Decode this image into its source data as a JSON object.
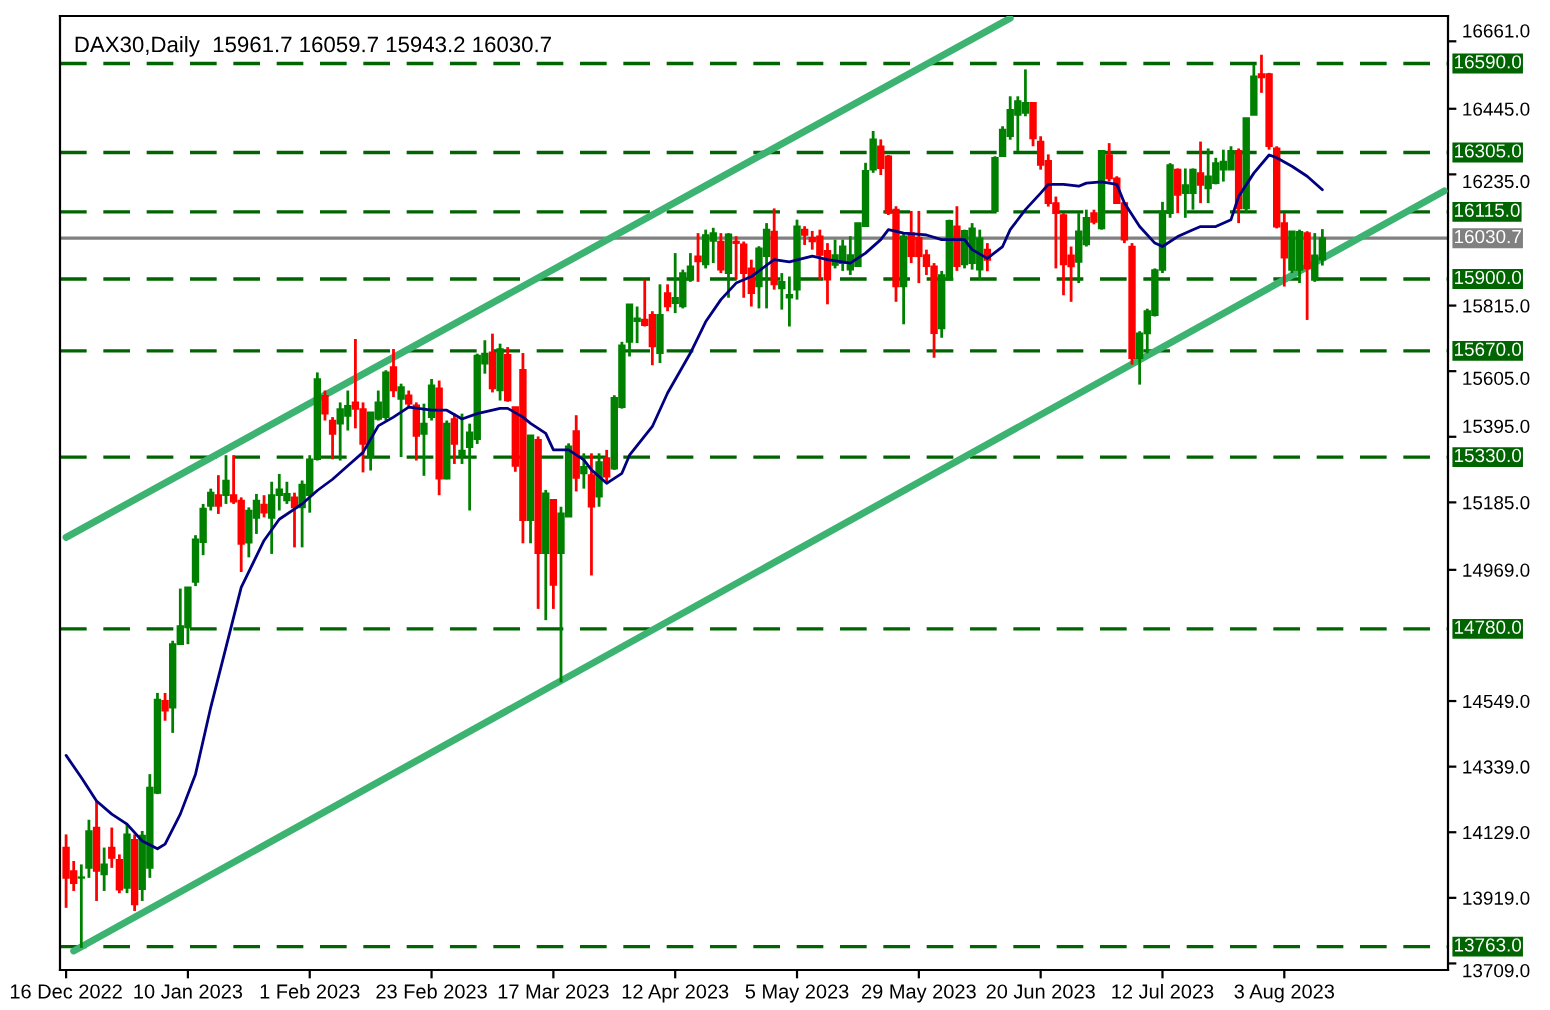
{
  "chart_data": {
    "type": "candlestick",
    "title": "DAX30,Daily  15961.7 16059.7 15943.2 16030.7",
    "categories": [
      "16 Dec 2022",
      null,
      null,
      null,
      null,
      null,
      null,
      null,
      null,
      null,
      null,
      null,
      null,
      null,
      null,
      null,
      "10 Jan 2023",
      null,
      null,
      null,
      null,
      null,
      null,
      null,
      null,
      null,
      null,
      null,
      null,
      null,
      null,
      null,
      "1 Feb 2023",
      null,
      null,
      null,
      null,
      null,
      null,
      null,
      null,
      null,
      null,
      null,
      null,
      null,
      null,
      null,
      "23 Feb 2023",
      null,
      null,
      null,
      null,
      null,
      null,
      null,
      null,
      null,
      null,
      null,
      null,
      null,
      null,
      null,
      "17 Mar 2023",
      null,
      null,
      null,
      null,
      null,
      null,
      null,
      null,
      null,
      null,
      null,
      null,
      null,
      null,
      null,
      "12 Apr 2023",
      null,
      null,
      null,
      null,
      null,
      null,
      null,
      null,
      null,
      null,
      null,
      null,
      null,
      null,
      null,
      "5 May 2023",
      null,
      null,
      null,
      null,
      null,
      null,
      null,
      null,
      null,
      null,
      null,
      null,
      null,
      null,
      null,
      "29 May 2023",
      null,
      null,
      null,
      null,
      null,
      null,
      null,
      null,
      null,
      null,
      null,
      null,
      null,
      null,
      null,
      "20 Jun 2023",
      null,
      null,
      null,
      null,
      null,
      null,
      null,
      null,
      null,
      null,
      null,
      null,
      null,
      null,
      null,
      "12 Jul 2023",
      null,
      null,
      null,
      null,
      null,
      null,
      null,
      null,
      null,
      null,
      null,
      null,
      null,
      null,
      null,
      "3 Aug 2023",
      null,
      null,
      null,
      null,
      null,
      null,
      null,
      null,
      null,
      null,
      null,
      null,
      null,
      null,
      null,
      null,
      null,
      null,
      null,
      null,
      null
    ],
    "ohlc": [
      [
        14080,
        14122,
        13887,
        13983
      ],
      [
        14005,
        14037,
        13941,
        13966
      ],
      [
        13983,
        14026,
        13759,
        13985
      ],
      [
        14015,
        14169,
        13983,
        14133
      ],
      [
        14144,
        14229,
        13909,
        14005
      ],
      [
        13994,
        14080,
        13941,
        14026
      ],
      [
        14080,
        14144,
        14015,
        14047
      ],
      [
        14041,
        14058,
        13934,
        13945
      ],
      [
        13951,
        14154,
        13934,
        14122
      ],
      [
        14105,
        14122,
        13877,
        13898
      ],
      [
        13947,
        14133,
        13909,
        14118
      ],
      [
        14015,
        14315,
        13983,
        14272
      ],
      [
        14255,
        14575,
        14251,
        14554
      ],
      [
        14550,
        14575,
        14486,
        14518
      ],
      [
        14528,
        14742,
        14447,
        14731
      ],
      [
        14731,
        14909,
        14731,
        14789
      ],
      [
        14785,
        14913,
        14731,
        14913
      ],
      [
        14930,
        15080,
        14917,
        15067
      ],
      [
        15058,
        15180,
        15016,
        15165
      ],
      [
        15174,
        15229,
        15159,
        15216
      ],
      [
        15208,
        15272,
        15148,
        15174
      ],
      [
        15208,
        15336,
        15180,
        15255
      ],
      [
        15208,
        15336,
        15180,
        15187
      ],
      [
        15191,
        15201,
        14962,
        15052
      ],
      [
        15056,
        15169,
        15009,
        15159
      ],
      [
        15135,
        15212,
        15084,
        15191
      ],
      [
        15178,
        15208,
        15137,
        15152
      ],
      [
        15135,
        15251,
        15020,
        15208
      ],
      [
        15208,
        15276,
        15159,
        15227
      ],
      [
        15191,
        15251,
        15180,
        15212
      ],
      [
        15201,
        15216,
        15041,
        15169
      ],
      [
        15169,
        15255,
        15041,
        15242
      ],
      [
        15208,
        15336,
        15152,
        15323
      ],
      [
        15323,
        15601,
        15319,
        15580
      ],
      [
        15526,
        15543,
        15447,
        15469
      ],
      [
        15447,
        15458,
        15323,
        15404
      ],
      [
        15437,
        15505,
        15319,
        15484
      ],
      [
        15462,
        15543,
        15415,
        15494
      ],
      [
        15505,
        15708,
        15422,
        15484
      ],
      [
        15484,
        15505,
        15281,
        15372
      ],
      [
        15330,
        15473,
        15287,
        15473
      ],
      [
        15452,
        15543,
        15447,
        15505
      ],
      [
        15458,
        15608,
        15447,
        15601
      ],
      [
        15618,
        15676,
        15522,
        15543
      ],
      [
        15516,
        15565,
        15330,
        15554
      ],
      [
        15528,
        15543,
        15490,
        15501
      ],
      [
        15496,
        15505,
        15319,
        15398
      ],
      [
        15404,
        15501,
        15270,
        15437
      ],
      [
        15458,
        15580,
        15447,
        15560
      ],
      [
        15550,
        15575,
        15208,
        15261
      ],
      [
        15261,
        15447,
        15259,
        15437
      ],
      [
        15452,
        15469,
        15308,
        15372
      ],
      [
        15336,
        15469,
        15308,
        15351
      ],
      [
        15362,
        15437,
        15159,
        15409
      ],
      [
        15387,
        15661,
        15372,
        15655
      ],
      [
        15629,
        15704,
        15597,
        15661
      ],
      [
        15665,
        15725,
        15537,
        15550
      ],
      [
        15543,
        15693,
        15511,
        15676
      ],
      [
        15657,
        15682,
        15507,
        15511
      ],
      [
        15490,
        15490,
        15283,
        15302
      ],
      [
        15609,
        15663,
        15054,
        15128
      ],
      [
        15128,
        15400,
        15054,
        15400
      ],
      [
        15385,
        15396,
        14844,
        15022
      ],
      [
        15022,
        15225,
        14808,
        15214
      ],
      [
        15193,
        15193,
        14844,
        14921
      ],
      [
        15022,
        15171,
        14609,
        15150
      ],
      [
        15139,
        15374,
        15139,
        15364
      ],
      [
        15413,
        15464,
        15220,
        15263
      ],
      [
        15278,
        15342,
        15229,
        15299
      ],
      [
        15272,
        15342,
        14951,
        15171
      ],
      [
        15203,
        15342,
        15171,
        15314
      ],
      [
        15327,
        15353,
        15246,
        15267
      ],
      [
        15293,
        15528,
        15289,
        15520
      ],
      [
        15490,
        15699,
        15485,
        15688
      ],
      [
        15699,
        15819,
        15652,
        15819
      ],
      [
        15765,
        15812,
        15695,
        15774
      ],
      [
        15770,
        15898,
        15748,
        15752
      ],
      [
        15785,
        15797,
        15624,
        15684
      ],
      [
        15663,
        15883,
        15631,
        15785
      ],
      [
        15855,
        15883,
        15797,
        15812
      ],
      [
        15823,
        15983,
        15791,
        15840
      ],
      [
        15812,
        15930,
        15806,
        15919
      ],
      [
        15898,
        15983,
        15891,
        15941
      ],
      [
        15973,
        16047,
        15891,
        15956
      ],
      [
        15947,
        16058,
        15934,
        16041
      ],
      [
        16022,
        16064,
        15951,
        16047
      ],
      [
        16020,
        16047,
        15919,
        15930
      ],
      [
        15919,
        16047,
        15840,
        16043
      ],
      [
        16020,
        16037,
        15898,
        16015
      ],
      [
        16011,
        16020,
        15840,
        15919
      ],
      [
        15934,
        15962,
        15812,
        15855
      ],
      [
        15876,
        16005,
        15806,
        15998
      ],
      [
        15973,
        16079,
        15806,
        16058
      ],
      [
        16052,
        16126,
        15866,
        15883
      ],
      [
        15870,
        15919,
        15802,
        15891
      ],
      [
        15840,
        15908,
        15748,
        15849
      ],
      [
        15866,
        16090,
        15834,
        16069
      ],
      [
        16058,
        16069,
        16009,
        16041
      ],
      [
        16032,
        16054,
        15994,
        16020
      ],
      [
        16037,
        16058,
        15898,
        15977
      ],
      [
        15990,
        16015,
        15819,
        15898
      ],
      [
        15945,
        16026,
        15934,
        15977
      ],
      [
        15951,
        16026,
        15926,
        16005
      ],
      [
        15930,
        16037,
        15913,
        15977
      ],
      [
        15941,
        16079,
        15941,
        16079
      ],
      [
        16069,
        16272,
        16069,
        16246
      ],
      [
        16250,
        16374,
        16240,
        16347
      ],
      [
        16325,
        16347,
        16233,
        16255
      ],
      [
        16293,
        16297,
        16105,
        16112
      ],
      [
        16122,
        16133,
        15827,
        15876
      ],
      [
        15876,
        16047,
        15755,
        16037
      ],
      [
        16047,
        16118,
        15951,
        15973
      ],
      [
        16032,
        16118,
        15887,
        15973
      ],
      [
        15977,
        15994,
        15913,
        15941
      ],
      [
        15941,
        15951,
        15648,
        15727
      ],
      [
        15742,
        15926,
        15712,
        15913
      ],
      [
        15898,
        16090,
        15898,
        16086
      ],
      [
        16069,
        16133,
        15926,
        15941
      ],
      [
        15947,
        16058,
        15934,
        16054
      ],
      [
        15951,
        16079,
        15930,
        16062
      ],
      [
        15930,
        16058,
        15898,
        16030
      ],
      [
        15994,
        16015,
        15925,
        15961
      ],
      [
        16117,
        16293,
        16117,
        16288
      ],
      [
        16293,
        16389,
        16293,
        16378
      ],
      [
        16357,
        16485,
        16346,
        16442
      ],
      [
        16425,
        16485,
        16310,
        16470
      ],
      [
        16432,
        16571,
        16421,
        16464
      ],
      [
        16464,
        16464,
        16325,
        16350
      ],
      [
        16340,
        16357,
        16250,
        16265
      ],
      [
        16278,
        16299,
        16132,
        16143
      ],
      [
        16143,
        16164,
        15934,
        16111
      ],
      [
        16105,
        16111,
        15848,
        15947
      ],
      [
        15976,
        16004,
        15827,
        15940
      ],
      [
        15955,
        16111,
        15887,
        16053
      ],
      [
        16011,
        16122,
        16004,
        16096
      ],
      [
        16111,
        16122,
        16075,
        16083
      ],
      [
        16062,
        16310,
        16058,
        16310
      ],
      [
        16297,
        16335,
        16212,
        16222
      ],
      [
        16222,
        16229,
        16143,
        16143
      ],
      [
        16143,
        16143,
        16015,
        16026
      ],
      [
        16004,
        16015,
        15626,
        15647
      ],
      [
        15647,
        15733,
        15562,
        15726
      ],
      [
        15726,
        15805,
        15662,
        15797
      ],
      [
        15784,
        15934,
        15780,
        15929
      ],
      [
        15929,
        16147,
        15919,
        16117
      ],
      [
        16111,
        16271,
        16096,
        16265
      ],
      [
        16250,
        16254,
        16111,
        16169
      ],
      [
        16175,
        16254,
        16096,
        16201
      ],
      [
        16175,
        16254,
        16122,
        16250
      ],
      [
        16239,
        16340,
        16143,
        16201
      ],
      [
        16190,
        16318,
        16143,
        16229
      ],
      [
        16207,
        16288,
        16203,
        16271
      ],
      [
        16250,
        16314,
        16212,
        16276
      ],
      [
        16250,
        16325,
        16250,
        16310
      ],
      [
        16310,
        16318,
        16079,
        16126
      ],
      [
        16126,
        16415,
        16111,
        16415
      ],
      [
        16425,
        16588,
        16425,
        16549
      ],
      [
        16556,
        16618,
        16496,
        16545
      ],
      [
        16556,
        16560,
        16314,
        16325
      ],
      [
        16318,
        16325,
        16062,
        16068
      ],
      [
        16079,
        16111,
        15876,
        15968
      ],
      [
        15929,
        16053,
        15919,
        16053
      ],
      [
        15929,
        16058,
        15887,
        16051
      ],
      [
        16047,
        16053,
        15769,
        15934
      ],
      [
        15897,
        16047,
        15891,
        15976
      ],
      [
        15961.7,
        16059.7,
        15943.2,
        16030.7
      ],
      null,
      null,
      null,
      null,
      null,
      null,
      null,
      null,
      null,
      null,
      null,
      null,
      null,
      null,
      null,
      null
    ],
    "colors": [
      "#ff0000",
      "#ff0000",
      "#008000",
      "#008000",
      "#ff0000",
      "#008000",
      "#ff0000",
      "#ff0000",
      "#008000",
      "#ff0000",
      "#008000",
      "#008000",
      "#008000",
      "#ff0000",
      "#008000",
      "#008000",
      "#008000",
      "#008000",
      "#008000",
      "#008000",
      "#ff0000",
      "#008000",
      "#ff0000",
      "#ff0000",
      "#008000",
      "#008000",
      "#ff0000",
      "#008000",
      "#008000",
      "#008000",
      "#ff0000",
      "#008000",
      "#008000",
      "#008000",
      "#ff0000",
      "#ff0000",
      "#008000",
      "#008000",
      "#ff0000",
      "#ff0000",
      "#008000",
      "#008000",
      "#008000",
      "#ff0000",
      "#008000",
      "#ff0000",
      "#ff0000",
      "#008000",
      "#008000",
      "#ff0000",
      "#008000",
      "#ff0000",
      "#008000",
      "#008000",
      "#008000",
      "#008000",
      "#ff0000",
      "#008000",
      "#ff0000",
      "#ff0000",
      "#ff0000",
      "#008000",
      "#ff0000",
      "#008000",
      "#ff0000",
      "#008000",
      "#008000",
      "#ff0000",
      "#008000",
      "#ff0000",
      "#008000",
      "#ff0000",
      "#008000",
      "#008000",
      "#008000",
      "#008000",
      "#ff0000",
      "#ff0000",
      "#008000",
      "#ff0000",
      "#008000",
      "#008000",
      "#008000",
      "#ff0000",
      "#008000",
      "#008000",
      "#ff0000",
      "#008000",
      "#ff0000",
      "#ff0000",
      "#ff0000",
      "#008000",
      "#008000",
      "#ff0000",
      "#008000",
      "#008000",
      "#008000",
      "#ff0000",
      "#ff0000",
      "#ff0000",
      "#ff0000",
      "#008000",
      "#008000",
      "#008000",
      "#008000",
      "#008000",
      "#008000",
      "#ff0000",
      "#ff0000",
      "#ff0000",
      "#008000",
      "#ff0000",
      "#ff0000",
      "#ff0000",
      "#ff0000",
      "#008000",
      "#008000",
      "#ff0000",
      "#008000",
      "#008000",
      "#008000",
      "#ff0000",
      "#008000",
      "#008000",
      "#008000",
      "#008000",
      "#008000",
      "#ff0000",
      "#ff0000",
      "#ff0000",
      "#ff0000",
      "#ff0000",
      "#ff0000",
      "#008000",
      "#008000",
      "#ff0000",
      "#008000",
      "#ff0000",
      "#ff0000",
      "#ff0000",
      "#ff0000",
      "#008000",
      "#008000",
      "#008000",
      "#008000",
      "#008000",
      "#ff0000",
      "#008000",
      "#008000",
      "#ff0000",
      "#008000",
      "#008000",
      "#008000",
      "#008000",
      "#ff0000",
      "#008000",
      "#008000",
      "#ff0000",
      "#ff0000",
      "#ff0000",
      "#ff0000",
      "#008000",
      "#008000",
      "#ff0000",
      "#008000",
      "#008000",
      null,
      null,
      null,
      null,
      null,
      null,
      null,
      null,
      null,
      null,
      null,
      null,
      null,
      null,
      null,
      null
    ],
    "series": [
      {
        "type": "line",
        "color": "#3cb371",
        "values": [
          15073,
          null,
          null,
          null,
          null,
          null,
          null,
          null,
          null,
          null,
          null,
          null,
          null,
          null,
          null,
          null,
          null,
          null,
          null,
          null,
          null,
          null,
          null,
          null,
          null,
          null,
          null,
          null,
          null,
          null,
          null,
          null,
          null,
          null,
          null,
          null,
          null,
          null,
          null,
          null,
          null,
          null,
          null,
          null,
          null,
          null,
          null,
          null,
          null,
          null,
          null,
          null,
          null,
          null,
          null,
          null,
          null,
          null,
          null,
          null,
          null,
          null,
          null,
          null,
          null,
          null,
          null,
          null,
          null,
          null,
          null,
          null,
          null,
          null,
          null,
          null,
          null,
          null,
          null,
          null,
          null,
          null,
          null,
          null,
          null,
          null,
          null,
          null,
          null,
          null,
          null,
          null,
          null,
          null,
          null,
          null,
          null,
          null,
          null,
          null,
          null,
          null,
          null,
          null,
          null,
          null,
          null,
          null,
          null,
          null,
          null,
          null,
          null,
          null,
          null,
          null,
          null,
          null,
          null,
          null,
          null,
          null,
          null,
          null,
          16735,
          null,
          null,
          null,
          null,
          null,
          null,
          null,
          null,
          null,
          null,
          null,
          null,
          null,
          null,
          null,
          null,
          null,
          null,
          null,
          null,
          null,
          null,
          null,
          null,
          null,
          null,
          null,
          null,
          null,
          null,
          null,
          null,
          null,
          null,
          null,
          null,
          null,
          null,
          null,
          null,
          null,
          null,
          null,
          null,
          null,
          null,
          null,
          null,
          null,
          null,
          null,
          null,
          null,
          null,
          null,
          null,
          null
        ]
      },
      {
        "type": "line",
        "color": "#3cb371",
        "values": [
          null,
          13749,
          null,
          null,
          null,
          null,
          null,
          null,
          null,
          null,
          null,
          null,
          null,
          null,
          null,
          null,
          null,
          null,
          null,
          null,
          null,
          null,
          null,
          null,
          null,
          null,
          null,
          null,
          null,
          null,
          null,
          null,
          null,
          null,
          null,
          null,
          null,
          null,
          null,
          null,
          null,
          null,
          null,
          null,
          null,
          null,
          null,
          null,
          null,
          null,
          null,
          null,
          null,
          null,
          null,
          null,
          null,
          null,
          null,
          null,
          null,
          null,
          null,
          null,
          null,
          null,
          null,
          null,
          null,
          null,
          null,
          null,
          null,
          null,
          null,
          null,
          null,
          null,
          null,
          null,
          null,
          null,
          null,
          null,
          null,
          null,
          null,
          null,
          null,
          null,
          null,
          null,
          null,
          null,
          null,
          null,
          null,
          null,
          null,
          null,
          null,
          null,
          null,
          null,
          null,
          null,
          null,
          null,
          null,
          null,
          null,
          null,
          null,
          null,
          null,
          null,
          null,
          null,
          null,
          null,
          null,
          null,
          null,
          null,
          null,
          null,
          null,
          null,
          null,
          null,
          null,
          null,
          null,
          null,
          null,
          null,
          null,
          null,
          null,
          null,
          null,
          null,
          null,
          null,
          null,
          null,
          null,
          null,
          null,
          null,
          null,
          null,
          null,
          null,
          null,
          null,
          null,
          null,
          null,
          null,
          null,
          null,
          null,
          null,
          null,
          null,
          null,
          null,
          null,
          null,
          null,
          null,
          null,
          null,
          null,
          null,
          null,
          null,
          null,
          null,
          null,
          16182
        ]
      },
      {
        "type": "line",
        "color": "#000080",
        "values": [
          14375,
          null,
          14304,
          null,
          14229,
          null,
          14187,
          null,
          14155,
          null,
          14101,
          null,
          14076,
          14091,
          null,
          14187,
          null,
          14315,
          null,
          14529,
          null,
          14721,
          null,
          14913,
          null,
          null,
          15063,
          null,
          15131,
          null,
          null,
          15180,
          null,
          15223,
          null,
          15259,
          null,
          15302,
          null,
          15345,
          null,
          15430,
          null,
          15458,
          null,
          15490,
          null,
          null,
          15480,
          null,
          15480,
          null,
          15452,
          null,
          15469,
          null,
          null,
          15486,
          15486,
          null,
          15458,
          15438,
          null,
          15406,
          15353,
          null,
          15353,
          null,
          15321,
          15289,
          null,
          15246,
          null,
          15278,
          15336,
          null,
          null,
          15428,
          null,
          15535,
          null,
          null,
          15663,
          null,
          15763,
          null,
          15834,
          null,
          15887,
          null,
          15908,
          null,
          null,
          15962,
          null,
          15955,
          null,
          null,
          15973,
          null,
          15962,
          null,
          null,
          15951,
          null,
          15983,
          null,
          16026,
          16058,
          null,
          16047,
          null,
          null,
          16041,
          null,
          16026,
          null,
          null,
          16026,
          15994,
          null,
          15966,
          null,
          16004,
          16058,
          null,
          16122,
          null,
          16175,
          16203,
          null,
          16203,
          null,
          16197,
          16207,
          null,
          16211,
          null,
          16203,
          16143,
          null,
          16068,
          null,
          16015,
          16004,
          null,
          16036,
          null,
          16058,
          16068,
          null,
          16068,
          null,
          16090,
          16164,
          null,
          16239,
          null,
          16297,
          16288,
          null,
          16261,
          null,
          16229,
          null,
          16186,
          null,
          null,
          null,
          null,
          null,
          null,
          null,
          null,
          null,
          null,
          null,
          null,
          null,
          null,
          null,
          null
        ]
      }
    ],
    "ref_lines": [
      {
        "axis": "y",
        "value": 16590,
        "label": "16590.0",
        "color": "#006400",
        "line_style": "dashed"
      },
      {
        "axis": "y",
        "value": 16305,
        "label": "16305.0",
        "color": "#006400",
        "line_style": "dashed"
      },
      {
        "axis": "y",
        "value": 16115,
        "label": "16115.0",
        "color": "#006400",
        "line_style": "dashed"
      },
      {
        "axis": "y",
        "value": 16030.7,
        "label": "16030.7",
        "color": "#808080",
        "line_style": "solid"
      },
      {
        "axis": "y",
        "value": 15900,
        "label": "15900.0",
        "color": "#006400",
        "line_style": "dashed"
      },
      {
        "axis": "y",
        "value": 15670,
        "label": "15670.0",
        "color": "#006400",
        "line_style": "dashed"
      },
      {
        "axis": "y",
        "value": 15330,
        "label": "15330.0",
        "color": "#006400",
        "line_style": "dashed"
      },
      {
        "axis": "y",
        "value": 14780,
        "label": "14780.0",
        "color": "#006400",
        "line_style": "dashed"
      },
      {
        "axis": "y",
        "value": 13763,
        "label": "13763.0",
        "color": "#006400",
        "line_style": "dashed"
      }
    ],
    "ylim": [
      13688,
      16742
    ],
    "yticks": [
      {
        "value": 16661,
        "label": "16661.0"
      },
      {
        "value": 16445,
        "label": "16445.0"
      },
      {
        "value": 16235,
        "label": "16235.0"
      },
      {
        "value": 15815,
        "label": "15815.0"
      },
      {
        "value": 15605,
        "label": "15605.0"
      },
      {
        "value": 15395,
        "label": "15395.0"
      },
      {
        "value": 15185,
        "label": "15185.0"
      },
      {
        "value": 14969,
        "label": "14969.0"
      },
      {
        "value": 14549,
        "label": "14549.0"
      },
      {
        "value": 14339,
        "label": "14339.0"
      },
      {
        "value": 14129,
        "label": "14129.0"
      },
      {
        "value": 13919,
        "label": "13919.0"
      },
      {
        "value": 13709,
        "label": "13709.0"
      }
    ],
    "grid": false,
    "legend": false
  }
}
